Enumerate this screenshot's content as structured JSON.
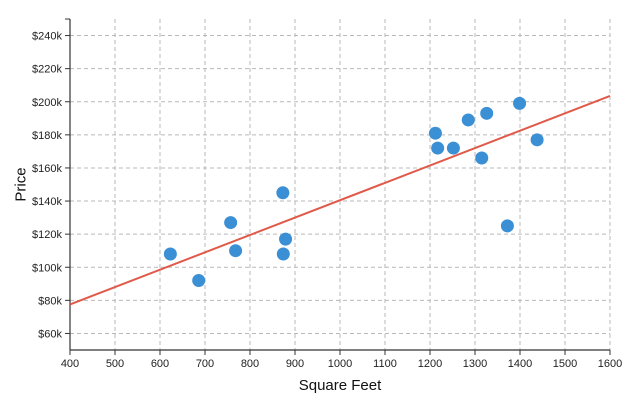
{
  "chart_data": {
    "type": "scatter",
    "title": "",
    "xlabel": "Square Feet",
    "ylabel": "Price",
    "xlim": [
      400,
      1600
    ],
    "ylim": [
      50000,
      250000
    ],
    "x_ticks": [
      400,
      500,
      600,
      700,
      800,
      900,
      1000,
      1100,
      1200,
      1300,
      1400,
      1500,
      1600
    ],
    "y_ticks": [
      60000,
      80000,
      100000,
      120000,
      140000,
      160000,
      180000,
      200000,
      220000,
      240000
    ],
    "x_tick_labels": [
      "400",
      "500",
      "600",
      "700",
      "800",
      "900",
      "1000",
      "1100",
      "1200",
      "1300",
      "1400",
      "1500",
      "1600"
    ],
    "y_tick_labels": [
      "$60k",
      "$80k",
      "$100k",
      "$120k",
      "$140k",
      "$160k",
      "$180k",
      "$200k",
      "$220k",
      "$240k"
    ],
    "grid": true,
    "colors": {
      "points": "#3b8fd4",
      "trendline": "#e05a4a",
      "grid": "#b9b9b9",
      "axis": "#333333"
    },
    "series": [
      {
        "values": [
          {
            "x": 623,
            "y": 108000
          },
          {
            "x": 686,
            "y": 92000
          },
          {
            "x": 757,
            "y": 127000
          },
          {
            "x": 768,
            "y": 110000
          },
          {
            "x": 873,
            "y": 145000
          },
          {
            "x": 874,
            "y": 108000
          },
          {
            "x": 879,
            "y": 117000
          },
          {
            "x": 1212,
            "y": 181000
          },
          {
            "x": 1217,
            "y": 172000
          },
          {
            "x": 1252,
            "y": 172000
          },
          {
            "x": 1285,
            "y": 189000
          },
          {
            "x": 1315,
            "y": 166000
          },
          {
            "x": 1326,
            "y": 193000
          },
          {
            "x": 1372,
            "y": 125000
          },
          {
            "x": 1399,
            "y": 199000
          },
          {
            "x": 1438,
            "y": 177000
          }
        ]
      }
    ],
    "trendline": {
      "type": "linear",
      "x": [
        400,
        1600
      ],
      "y": [
        77500,
        203500
      ]
    }
  }
}
